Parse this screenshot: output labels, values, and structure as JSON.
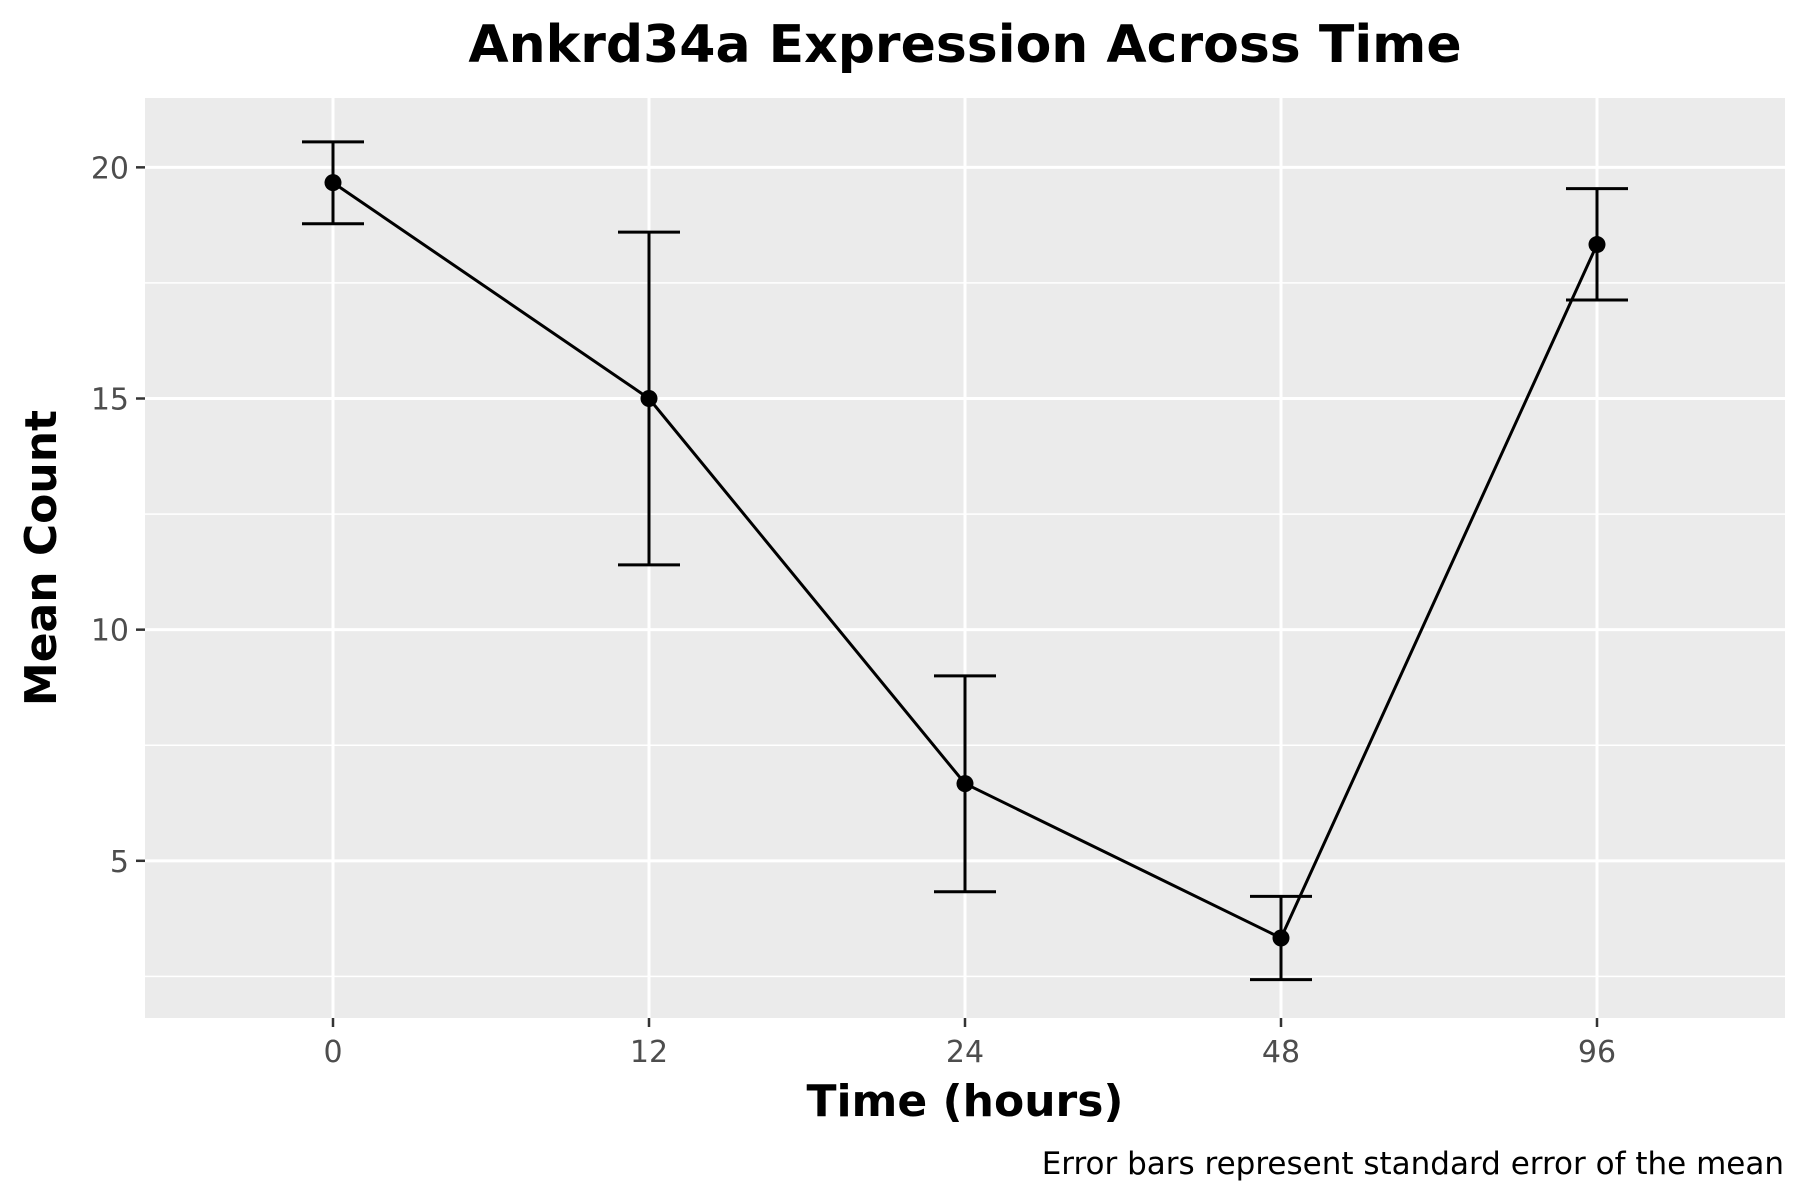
{
  "chart_data": {
    "type": "line",
    "title": "Ankrd34a Expression Across Time",
    "xlabel": "Time (hours)",
    "ylabel": "Mean Count",
    "caption": "Error bars represent standard error of the mean",
    "categories": [
      "0",
      "12",
      "24",
      "48",
      "96"
    ],
    "series": [
      {
        "name": "Ankrd34a",
        "values": [
          19.67,
          15.0,
          6.67,
          3.33,
          18.33
        ],
        "error_low": [
          18.78,
          11.4,
          4.33,
          2.43,
          17.13
        ],
        "error_high": [
          20.55,
          18.6,
          9.0,
          4.23,
          19.54
        ]
      }
    ],
    "yticks": [
      5,
      10,
      15,
      20
    ],
    "ylim": [
      1.6,
      21.5
    ],
    "grid": true,
    "colors": {
      "panel": "#ebebeb",
      "grid": "#ffffff",
      "line": "#000000",
      "tick_label": "#4d4d4d"
    }
  }
}
